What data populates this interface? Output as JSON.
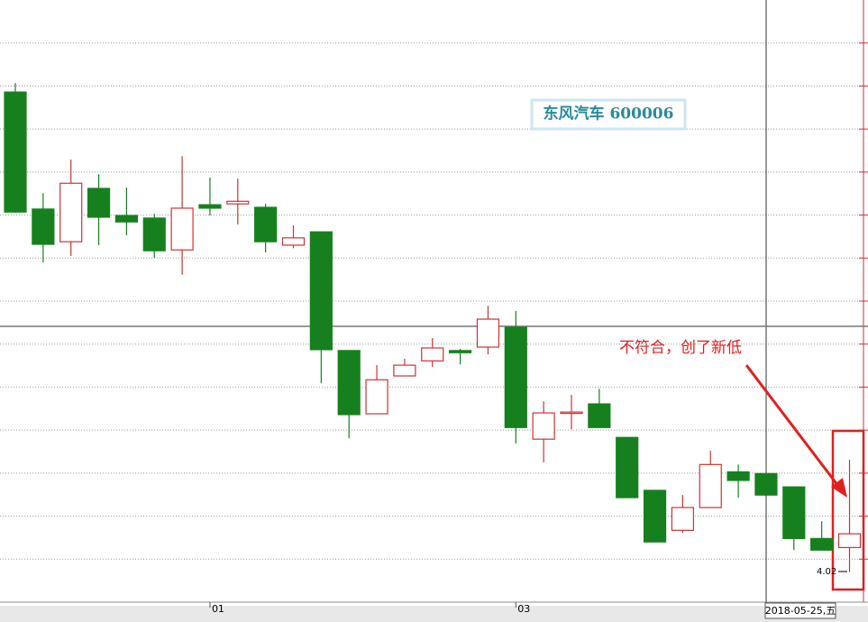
{
  "chart_data": {
    "type": "candlestick",
    "title": "东风汽车 600006",
    "annotation": "不符合，创了新低",
    "cursor_date": "2018-05-25,五",
    "low_label": "4.02",
    "categories": [
      null,
      null,
      null,
      null,
      null,
      null,
      null,
      "01",
      null,
      null,
      null,
      null,
      null,
      null,
      null,
      null,
      null,
      null,
      "03",
      null,
      null,
      null,
      null,
      null,
      null,
      null,
      null,
      null,
      null,
      null,
      null
    ],
    "up_color": "#cc3333",
    "down_color": "#16801f",
    "open": [
      5.136,
      4.864,
      4.788,
      4.912,
      4.849,
      4.843,
      4.769,
      4.874,
      4.876,
      4.868,
      4.78,
      4.811,
      4.535,
      4.388,
      4.476,
      4.511,
      4.535,
      4.543,
      4.589,
      4.329,
      4.391,
      4.411,
      4.333,
      4.21,
      4.117,
      4.17,
      4.253,
      4.249,
      4.218,
      4.098,
      4.077
    ],
    "high": [
      5.157,
      4.901,
      4.979,
      4.945,
      4.914,
      4.853,
      4.987,
      4.937,
      4.935,
      4.876,
      4.826,
      4.811,
      4.535,
      4.501,
      4.516,
      4.564,
      4.539,
      4.639,
      4.627,
      4.417,
      4.432,
      4.446,
      4.333,
      4.21,
      4.199,
      4.302,
      4.27,
      4.249,
      4.218,
      4.138,
      4.281
    ],
    "low": [
      4.855,
      4.74,
      4.755,
      4.78,
      4.803,
      4.75,
      4.711,
      4.849,
      4.828,
      4.763,
      4.773,
      4.459,
      4.331,
      4.388,
      4.476,
      4.497,
      4.503,
      4.526,
      4.319,
      4.275,
      4.352,
      4.356,
      4.193,
      4.09,
      4.111,
      4.17,
      4.193,
      4.199,
      4.071,
      4.071,
      4.02
    ],
    "close": [
      4.857,
      4.782,
      4.924,
      4.845,
      4.834,
      4.767,
      4.866,
      4.866,
      4.882,
      4.788,
      4.797,
      4.537,
      4.386,
      4.467,
      4.501,
      4.541,
      4.53,
      4.608,
      4.356,
      4.39,
      4.392,
      4.356,
      4.193,
      4.09,
      4.17,
      4.27,
      4.233,
      4.199,
      4.098,
      4.071,
      4.109
    ],
    "ylim": [
      3.95,
      5.35
    ],
    "yticks": [
      4.05,
      4.15,
      4.25,
      4.35,
      4.45,
      4.55,
      4.65,
      4.75,
      4.85,
      4.95,
      5.05,
      5.15,
      5.25
    ],
    "grid": true
  }
}
